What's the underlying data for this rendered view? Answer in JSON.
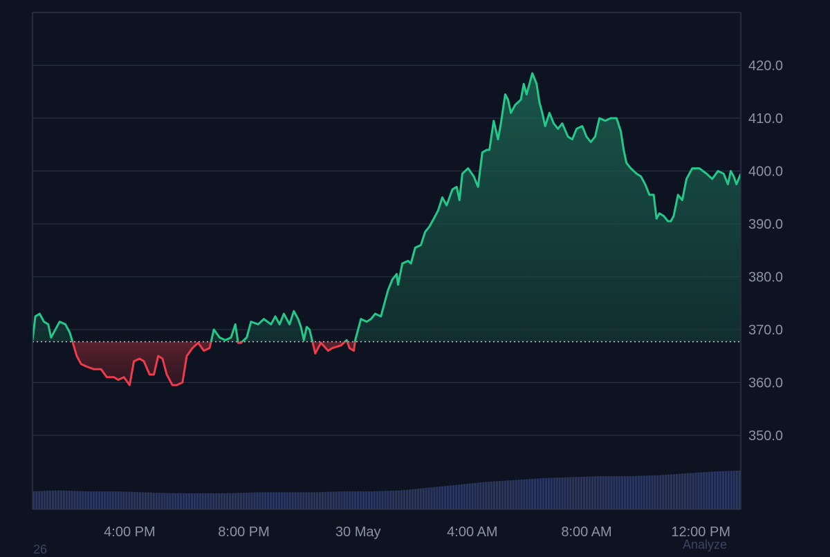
{
  "colors": {
    "background": "#0d1320",
    "grid": "#2a3344",
    "axis_text": "#8c93a6",
    "up": "#22c98a",
    "down": "#ef3b4a",
    "baseline": "#c8ccd6",
    "volume": "#2b3660"
  },
  "footer": {
    "left_text": "26",
    "right_text": "Analyze"
  },
  "chart_data": {
    "type": "area",
    "subtype": "baseline",
    "baseline": 367.7,
    "ylim": [
      336,
      430
    ],
    "yticks": [
      350.0,
      360.0,
      370.0,
      380.0,
      390.0,
      400.0,
      410.0,
      420.0
    ],
    "ytick_labels": [
      "350.0",
      "360.0",
      "370.0",
      "380.0",
      "390.0",
      "400.0",
      "410.0",
      "420.0"
    ],
    "y_axis_position": "right",
    "grid": "horizontal",
    "xlim": [
      -0.4,
      24.4
    ],
    "xticks": [
      {
        "x": 3,
        "label": "4:00 PM"
      },
      {
        "x": 7,
        "label": "8:00 PM"
      },
      {
        "x": 11,
        "label": "30 May"
      },
      {
        "x": 15,
        "label": "4:00 AM"
      },
      {
        "x": 19,
        "label": "8:00 AM"
      },
      {
        "x": 23,
        "label": "12:00 PM"
      }
    ],
    "price": [
      [
        -0.4,
        368.0
      ],
      [
        -0.3,
        372.5
      ],
      [
        -0.15,
        373.0
      ],
      [
        0.0,
        371.5
      ],
      [
        0.15,
        371.0
      ],
      [
        0.25,
        368.5
      ],
      [
        0.4,
        370.0
      ],
      [
        0.55,
        371.5
      ],
      [
        0.75,
        371.0
      ],
      [
        0.9,
        369.5
      ],
      [
        1.15,
        365.0
      ],
      [
        1.3,
        363.5
      ],
      [
        1.5,
        363.0
      ],
      [
        1.75,
        362.5
      ],
      [
        2.0,
        362.5
      ],
      [
        2.2,
        361.0
      ],
      [
        2.45,
        361.0
      ],
      [
        2.6,
        360.5
      ],
      [
        2.8,
        361.0
      ],
      [
        3.0,
        359.5
      ],
      [
        3.15,
        364.0
      ],
      [
        3.35,
        364.5
      ],
      [
        3.5,
        364.0
      ],
      [
        3.7,
        361.5
      ],
      [
        3.85,
        361.5
      ],
      [
        4.0,
        365.0
      ],
      [
        4.15,
        364.5
      ],
      [
        4.3,
        361.5
      ],
      [
        4.5,
        359.5
      ],
      [
        4.65,
        359.5
      ],
      [
        4.85,
        360.0
      ],
      [
        5.0,
        365.0
      ],
      [
        5.2,
        366.5
      ],
      [
        5.4,
        367.5
      ],
      [
        5.6,
        366.0
      ],
      [
        5.8,
        366.5
      ],
      [
        5.95,
        370.0
      ],
      [
        6.15,
        368.5
      ],
      [
        6.35,
        368.0
      ],
      [
        6.55,
        368.5
      ],
      [
        6.7,
        371.0
      ],
      [
        6.8,
        367.5
      ],
      [
        6.9,
        367.5
      ],
      [
        7.1,
        368.5
      ],
      [
        7.25,
        371.5
      ],
      [
        7.5,
        371.0
      ],
      [
        7.7,
        372.0
      ],
      [
        7.95,
        371.0
      ],
      [
        8.1,
        372.5
      ],
      [
        8.25,
        371.0
      ],
      [
        8.4,
        373.0
      ],
      [
        8.6,
        371.0
      ],
      [
        8.75,
        373.5
      ],
      [
        8.9,
        372.0
      ],
      [
        9.0,
        370.5
      ],
      [
        9.1,
        368.0
      ],
      [
        9.2,
        370.5
      ],
      [
        9.3,
        370.0
      ],
      [
        9.5,
        365.5
      ],
      [
        9.7,
        367.5
      ],
      [
        9.95,
        366.0
      ],
      [
        10.1,
        366.5
      ],
      [
        10.4,
        367.0
      ],
      [
        10.6,
        368.0
      ],
      [
        10.7,
        366.5
      ],
      [
        10.85,
        366.0
      ],
      [
        10.9,
        368.0
      ],
      [
        11.1,
        372.0
      ],
      [
        11.3,
        371.5
      ],
      [
        11.45,
        372.0
      ],
      [
        11.6,
        373.0
      ],
      [
        11.8,
        372.5
      ],
      [
        11.95,
        375.5
      ],
      [
        12.05,
        377.5
      ],
      [
        12.2,
        379.5
      ],
      [
        12.35,
        380.5
      ],
      [
        12.4,
        378.5
      ],
      [
        12.55,
        382.5
      ],
      [
        12.75,
        383.0
      ],
      [
        12.85,
        382.5
      ],
      [
        13.0,
        385.5
      ],
      [
        13.2,
        386.0
      ],
      [
        13.35,
        388.5
      ],
      [
        13.5,
        389.5
      ],
      [
        13.6,
        390.5
      ],
      [
        13.8,
        392.5
      ],
      [
        13.95,
        395.0
      ],
      [
        14.1,
        393.5
      ],
      [
        14.3,
        396.5
      ],
      [
        14.45,
        397.0
      ],
      [
        14.55,
        394.5
      ],
      [
        14.65,
        399.5
      ],
      [
        14.85,
        400.5
      ],
      [
        15.05,
        399.0
      ],
      [
        15.2,
        397.0
      ],
      [
        15.35,
        403.5
      ],
      [
        15.5,
        404.0
      ],
      [
        15.6,
        404.0
      ],
      [
        15.75,
        409.5
      ],
      [
        15.9,
        406.0
      ],
      [
        16.0,
        409.0
      ],
      [
        16.15,
        414.5
      ],
      [
        16.25,
        413.5
      ],
      [
        16.35,
        411.0
      ],
      [
        16.5,
        412.5
      ],
      [
        16.7,
        413.5
      ],
      [
        16.8,
        416.5
      ],
      [
        16.9,
        414.5
      ],
      [
        17.0,
        416.5
      ],
      [
        17.1,
        418.5
      ],
      [
        17.25,
        416.5
      ],
      [
        17.35,
        413.0
      ],
      [
        17.45,
        411.0
      ],
      [
        17.55,
        408.5
      ],
      [
        17.7,
        411.0
      ],
      [
        17.85,
        409.0
      ],
      [
        18.0,
        408.0
      ],
      [
        18.15,
        409.0
      ],
      [
        18.35,
        406.5
      ],
      [
        18.5,
        406.0
      ],
      [
        18.65,
        408.0
      ],
      [
        18.85,
        408.5
      ],
      [
        19.0,
        406.5
      ],
      [
        19.15,
        405.5
      ],
      [
        19.3,
        406.5
      ],
      [
        19.45,
        410.0
      ],
      [
        19.65,
        409.5
      ],
      [
        19.85,
        410.0
      ],
      [
        20.05,
        410.0
      ],
      [
        20.2,
        407.5
      ],
      [
        20.3,
        404.0
      ],
      [
        20.4,
        401.5
      ],
      [
        20.55,
        400.5
      ],
      [
        20.75,
        399.5
      ],
      [
        20.9,
        399.0
      ],
      [
        21.05,
        397.5
      ],
      [
        21.2,
        395.5
      ],
      [
        21.35,
        395.5
      ],
      [
        21.45,
        391.0
      ],
      [
        21.55,
        392.0
      ],
      [
        21.7,
        391.5
      ],
      [
        21.85,
        390.5
      ],
      [
        21.95,
        390.5
      ],
      [
        22.05,
        391.5
      ],
      [
        22.2,
        395.5
      ],
      [
        22.35,
        394.5
      ],
      [
        22.5,
        398.5
      ],
      [
        22.7,
        400.5
      ],
      [
        22.95,
        400.5
      ],
      [
        23.2,
        399.5
      ],
      [
        23.4,
        398.5
      ],
      [
        23.6,
        400.0
      ],
      [
        23.8,
        399.5
      ],
      [
        23.95,
        397.5
      ],
      [
        24.05,
        400.0
      ],
      [
        24.15,
        399.0
      ],
      [
        24.25,
        397.5
      ],
      [
        24.4,
        399.5
      ]
    ],
    "volume": [
      [
        -0.4,
        0.19
      ],
      [
        0.5,
        0.2
      ],
      [
        1.5,
        0.19
      ],
      [
        2.5,
        0.19
      ],
      [
        3.5,
        0.18
      ],
      [
        4.5,
        0.17
      ],
      [
        5.5,
        0.17
      ],
      [
        6.5,
        0.17
      ],
      [
        7.5,
        0.18
      ],
      [
        8.5,
        0.18
      ],
      [
        9.5,
        0.18
      ],
      [
        10.5,
        0.19
      ],
      [
        11.5,
        0.19
      ],
      [
        12.5,
        0.2
      ],
      [
        13.5,
        0.23
      ],
      [
        14.5,
        0.26
      ],
      [
        15.5,
        0.29
      ],
      [
        16.5,
        0.31
      ],
      [
        17.5,
        0.33
      ],
      [
        18.5,
        0.34
      ],
      [
        19.5,
        0.35
      ],
      [
        20.5,
        0.35
      ],
      [
        21.5,
        0.36
      ],
      [
        22.5,
        0.38
      ],
      [
        23.5,
        0.4
      ],
      [
        24.4,
        0.41
      ]
    ]
  }
}
